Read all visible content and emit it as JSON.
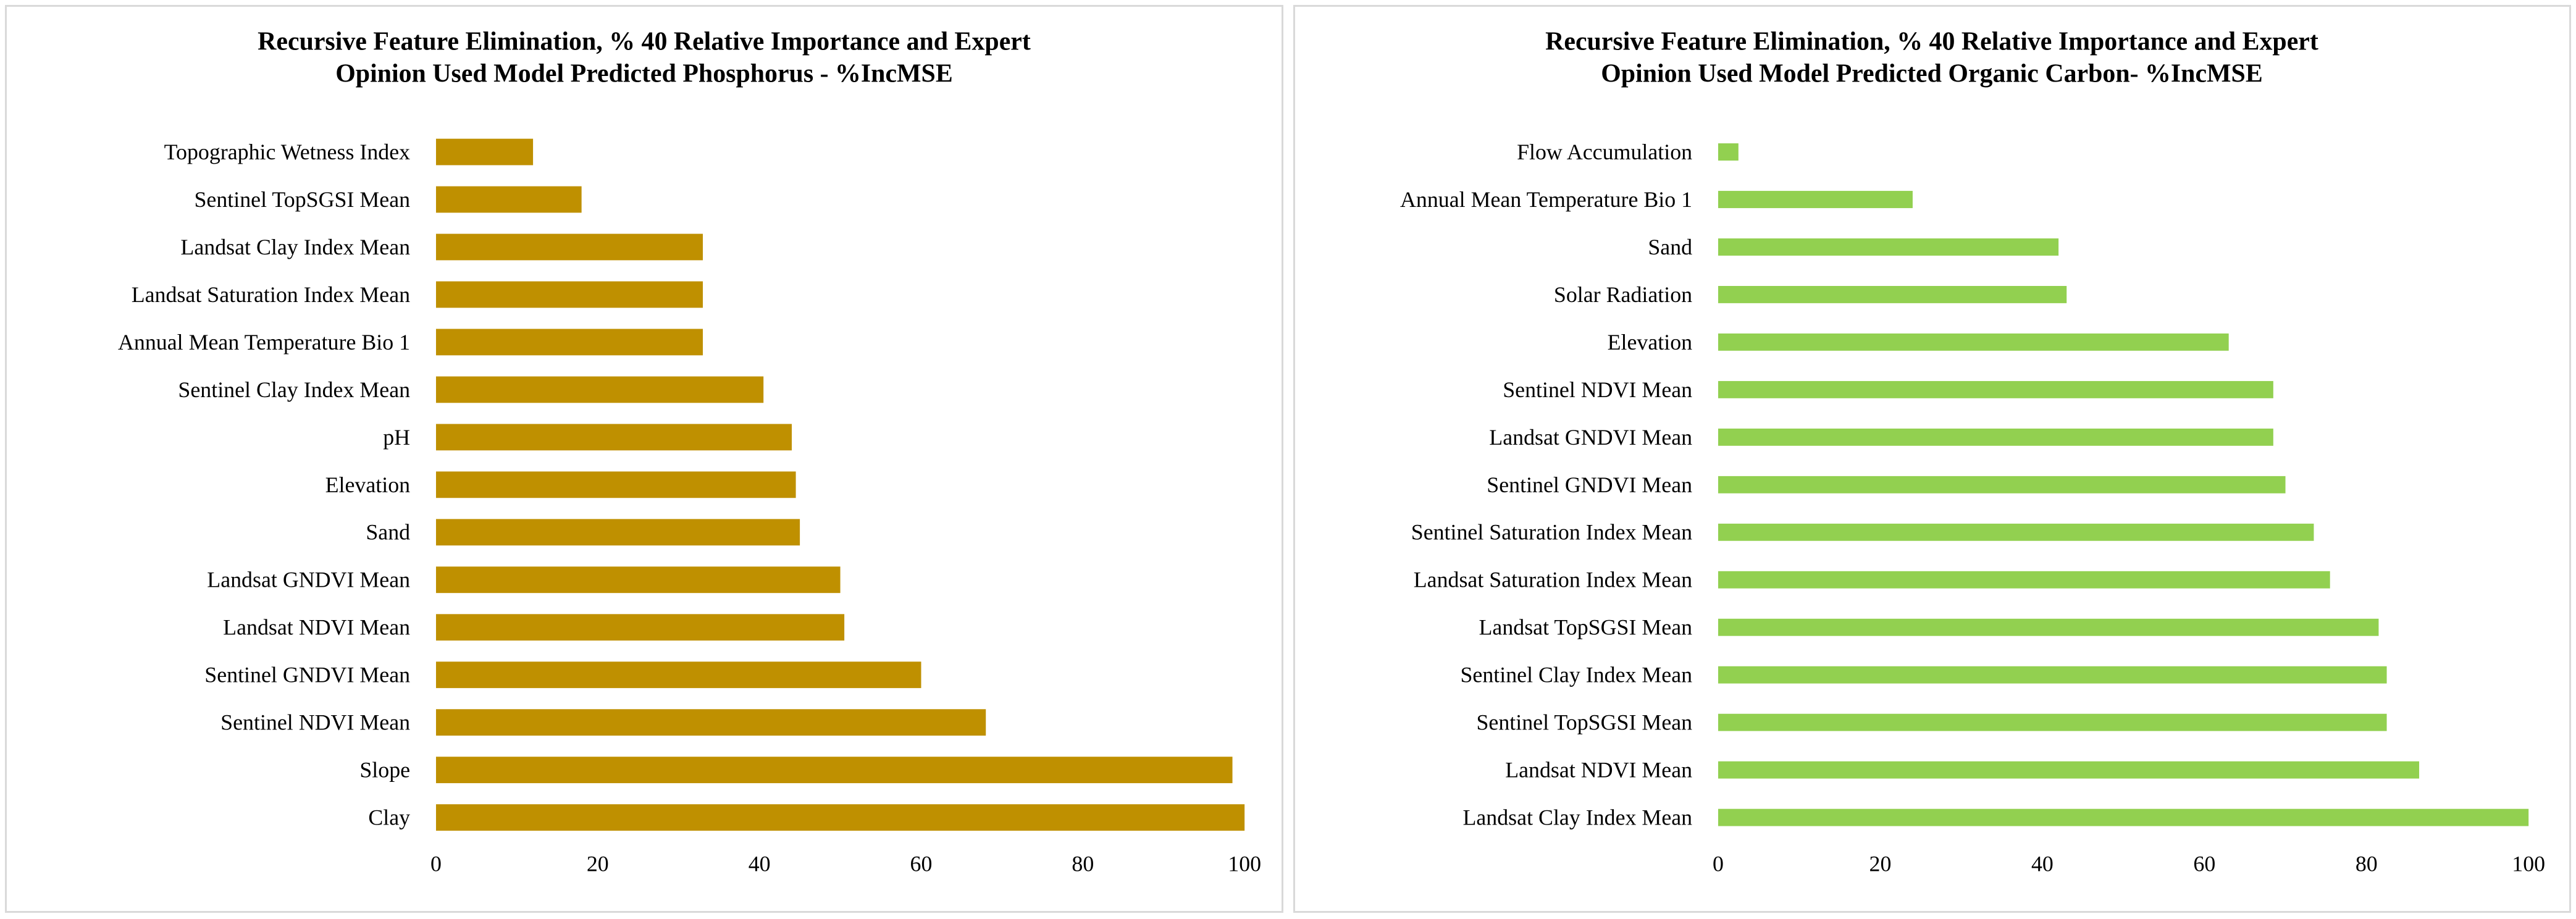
{
  "chart_data": [
    {
      "type": "bar",
      "orientation": "horizontal",
      "title_lines": [
        "Recursive Feature Elimination, % 40 Relative Importance and Expert",
        "Opinion Used Model Predicted Phosphorus - %IncMSE"
      ],
      "categories": [
        "Topographic Wetness Index",
        "Sentinel TopSGSI Mean",
        "Landsat Clay Index Mean",
        "Landsat Saturation Index Mean",
        "Annual Mean Temperature Bio 1",
        "Sentinel Clay Index Mean",
        "pH",
        "Elevation",
        "Sand",
        "Landsat GNDVI Mean",
        "Landsat NDVI Mean",
        "Sentinel GNDVI Mean",
        "Sentinel NDVI Mean",
        "Slope",
        "Clay"
      ],
      "values": [
        12,
        18,
        33,
        33,
        33,
        40.5,
        44,
        44.5,
        45,
        50,
        50.5,
        60,
        68,
        98.5,
        100
      ],
      "xlim": [
        0,
        100
      ],
      "xticks": [
        "0",
        "20",
        "40",
        "60",
        "80",
        "100"
      ],
      "bar_color": "#bf9000",
      "xlabel": "",
      "ylabel": ""
    },
    {
      "type": "bar",
      "orientation": "horizontal",
      "title_lines": [
        "Recursive Feature Elimination, % 40 Relative Importance and Expert",
        "Opinion Used Model Predicted Organic Carbon- %IncMSE"
      ],
      "categories": [
        "Flow Accumulation",
        "Annual Mean Temperature Bio 1",
        "Sand",
        "Solar Radiation",
        "Elevation",
        "Sentinel NDVI Mean",
        "Landsat GNDVI Mean",
        "Sentinel GNDVI Mean",
        "Sentinel Saturation Index Mean",
        "Landsat Saturation Index Mean",
        "Landsat TopSGSI Mean",
        "Sentinel Clay Index Mean",
        "Sentinel TopSGSI Mean",
        "Landsat NDVI Mean",
        "Landsat Clay Index Mean"
      ],
      "values": [
        2.5,
        24,
        42,
        43,
        63,
        68.5,
        68.5,
        70,
        73.5,
        75.5,
        81.5,
        82.5,
        82.5,
        86.5,
        100
      ],
      "xlim": [
        0,
        100
      ],
      "xticks": [
        "0",
        "20",
        "40",
        "60",
        "80",
        "100"
      ],
      "bar_color": "#92d050",
      "xlabel": "",
      "ylabel": ""
    }
  ]
}
